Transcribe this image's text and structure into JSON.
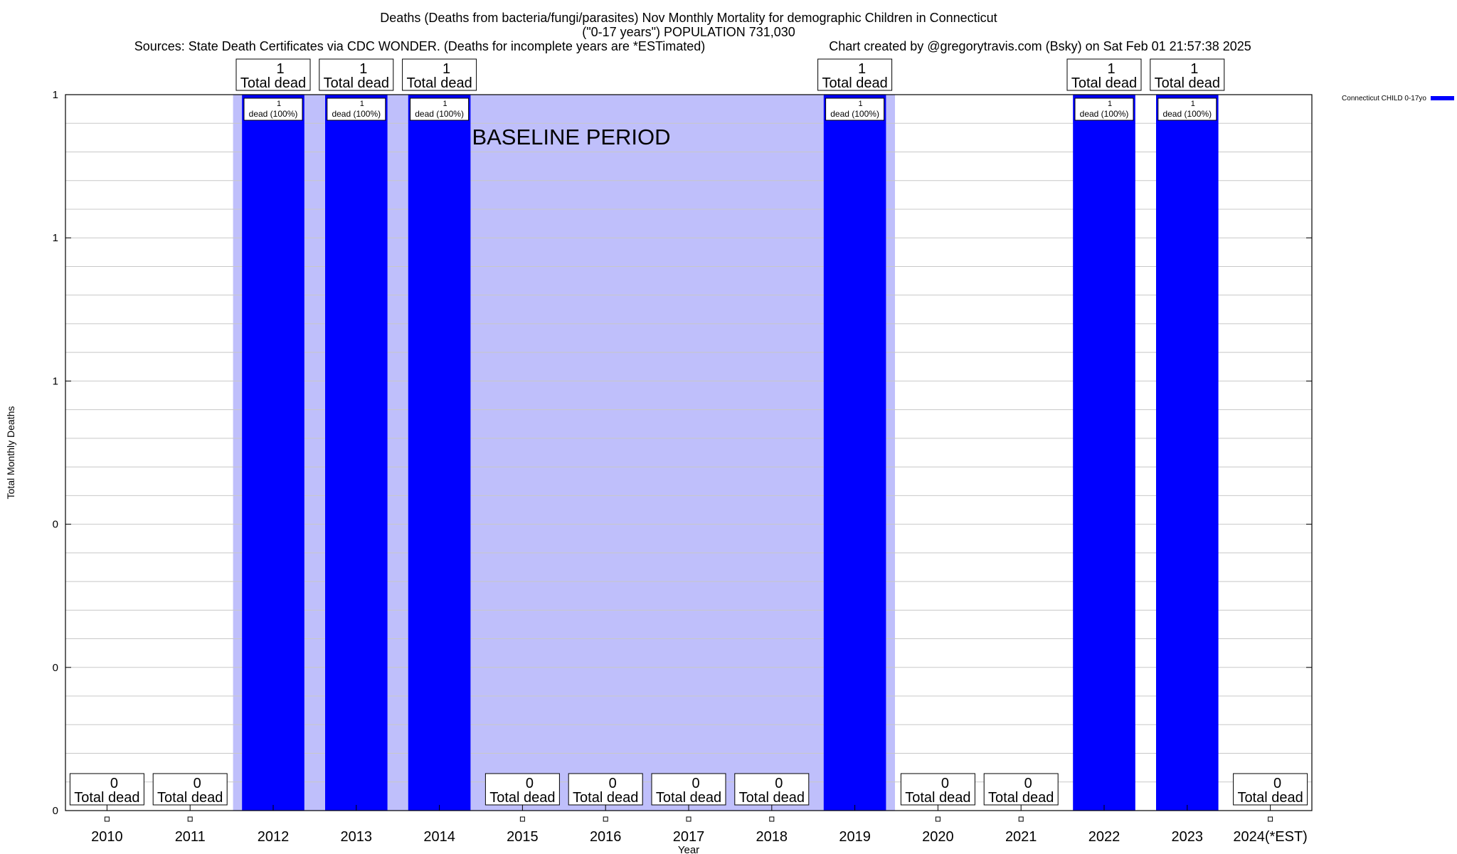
{
  "chart_data": {
    "type": "bar",
    "title_lines": [
      "Deaths (Deaths from bacteria/fungi/parasites) Nov Monthly Mortality for demographic Children in Connecticut",
      "(\"0-17 years\") POPULATION 731,030"
    ],
    "sources": "Sources: State Death Certificates via CDC WONDER. (Deaths for incomplete years are *ESTimated)",
    "credit": "Chart created by @gregorytravis.com (Bsky) on Sat Feb 01 21:57:38 2025",
    "xlabel": "Year",
    "ylabel": "Total Monthly Deaths",
    "categories": [
      "2010",
      "2011",
      "2012",
      "2013",
      "2014",
      "2015",
      "2016",
      "2017",
      "2018",
      "2019",
      "2020",
      "2021",
      "2022",
      "2023",
      "2024(*EST)"
    ],
    "series": [
      {
        "name": "Connecticut CHILD 0-17yo",
        "color": "#0000ff",
        "values": [
          0,
          0,
          1,
          1,
          1,
          0,
          0,
          0,
          0,
          1,
          0,
          0,
          1,
          1,
          0
        ]
      }
    ],
    "total_labels": [
      {
        "value": "0",
        "text": "Total dead"
      },
      {
        "value": "0",
        "text": "Total dead"
      },
      {
        "value": "1",
        "text": "Total dead"
      },
      {
        "value": "1",
        "text": "Total dead"
      },
      {
        "value": "1",
        "text": "Total dead"
      },
      {
        "value": "0",
        "text": "Total dead"
      },
      {
        "value": "0",
        "text": "Total dead"
      },
      {
        "value": "0",
        "text": "Total dead"
      },
      {
        "value": "0",
        "text": "Total dead"
      },
      {
        "value": "1",
        "text": "Total dead"
      },
      {
        "value": "0",
        "text": "Total dead"
      },
      {
        "value": "0",
        "text": "Total dead"
      },
      {
        "value": "1",
        "text": "Total dead"
      },
      {
        "value": "1",
        "text": "Total dead"
      },
      {
        "value": "0",
        "text": "Total dead"
      }
    ],
    "bar_labels": [
      null,
      null,
      "1|dead (100%)",
      "1|dead (100%)",
      "1|dead (100%)",
      null,
      null,
      null,
      null,
      "1|dead (100%)",
      null,
      null,
      "1|dead (100%)",
      "1|dead (100%)",
      null
    ],
    "ylim": [
      0,
      1
    ],
    "y_ticks": [
      {
        "value": 0,
        "label": "0"
      },
      {
        "value": 0.2,
        "label": "0"
      },
      {
        "value": 0.4,
        "label": "0"
      },
      {
        "value": 0.6,
        "label": "1"
      },
      {
        "value": 0.8,
        "label": "1"
      },
      {
        "value": 1,
        "label": "1"
      }
    ],
    "baseline": {
      "label": "BASELINE PERIOD",
      "from_category": "2012",
      "to_category": "2019",
      "color": "#bfbffb"
    },
    "grid": true,
    "legend_position": "top-right"
  }
}
